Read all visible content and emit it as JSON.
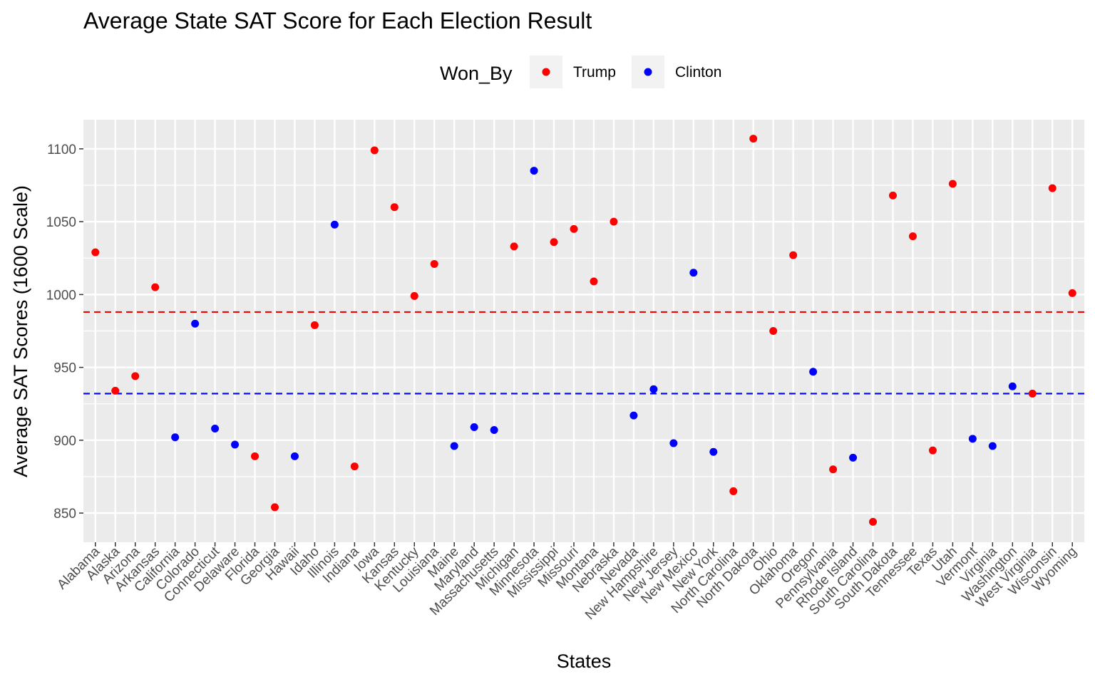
{
  "chart_data": {
    "type": "scatter",
    "title": "Average State SAT Score for Each Election Result",
    "xlabel": "States",
    "ylabel": "Average SAT Scores (1600 Scale)",
    "ylim": [
      830,
      1120
    ],
    "yticks": [
      850,
      900,
      950,
      1000,
      1050,
      1100
    ],
    "legend": {
      "title": "Won_By",
      "position": "top",
      "entries": [
        {
          "label": "Trump",
          "color": "#ff0000"
        },
        {
          "label": "Clinton",
          "color": "#0000ff"
        }
      ]
    },
    "reference_lines": [
      {
        "group": "Trump",
        "value": 988,
        "color": "#ff0000",
        "style": "dashed"
      },
      {
        "group": "Clinton",
        "value": 932,
        "color": "#0000ff",
        "style": "dashed"
      }
    ],
    "categories": [
      "Alabama",
      "Alaska",
      "Arizona",
      "Arkansas",
      "California",
      "Colorado",
      "Connecticut",
      "Delaware",
      "Florida",
      "Georgia",
      "Hawaii",
      "Idaho",
      "Illinois",
      "Indiana",
      "Iowa",
      "Kansas",
      "Kentucky",
      "Louisiana",
      "Maine",
      "Maryland",
      "Massachusetts",
      "Michigan",
      "Minnesota",
      "Mississippi",
      "Missouri",
      "Montana",
      "Nebraska",
      "Nevada",
      "New Hampshire",
      "New Jersey",
      "New Mexico",
      "New York",
      "North Carolina",
      "North Dakota",
      "Ohio",
      "Oklahoma",
      "Oregon",
      "Pennsylvania",
      "Rhode Island",
      "South Carolina",
      "South Dakota",
      "Tennessee",
      "Texas",
      "Utah",
      "Vermont",
      "Virginia",
      "Washington",
      "West Virginia",
      "Wisconsin",
      "Wyoming"
    ],
    "values": [
      1029,
      934,
      944,
      1005,
      902,
      980,
      908,
      897,
      889,
      854,
      889,
      979,
      1048,
      882,
      1099,
      1060,
      999,
      1021,
      896,
      909,
      907,
      1033,
      1085,
      1036,
      1045,
      1009,
      1050,
      917,
      935,
      898,
      1015,
      892,
      865,
      1107,
      975,
      1027,
      947,
      880,
      888,
      844,
      1068,
      1040,
      893,
      1076,
      901,
      896,
      937,
      932,
      1073,
      1001
    ],
    "won_by": [
      "Trump",
      "Trump",
      "Trump",
      "Trump",
      "Clinton",
      "Clinton",
      "Clinton",
      "Clinton",
      "Trump",
      "Trump",
      "Clinton",
      "Trump",
      "Clinton",
      "Trump",
      "Trump",
      "Trump",
      "Trump",
      "Trump",
      "Clinton",
      "Clinton",
      "Clinton",
      "Trump",
      "Clinton",
      "Trump",
      "Trump",
      "Trump",
      "Trump",
      "Clinton",
      "Clinton",
      "Clinton",
      "Clinton",
      "Clinton",
      "Trump",
      "Trump",
      "Trump",
      "Trump",
      "Clinton",
      "Trump",
      "Clinton",
      "Trump",
      "Trump",
      "Trump",
      "Trump",
      "Trump",
      "Clinton",
      "Clinton",
      "Clinton",
      "Trump",
      "Trump",
      "Trump"
    ]
  }
}
